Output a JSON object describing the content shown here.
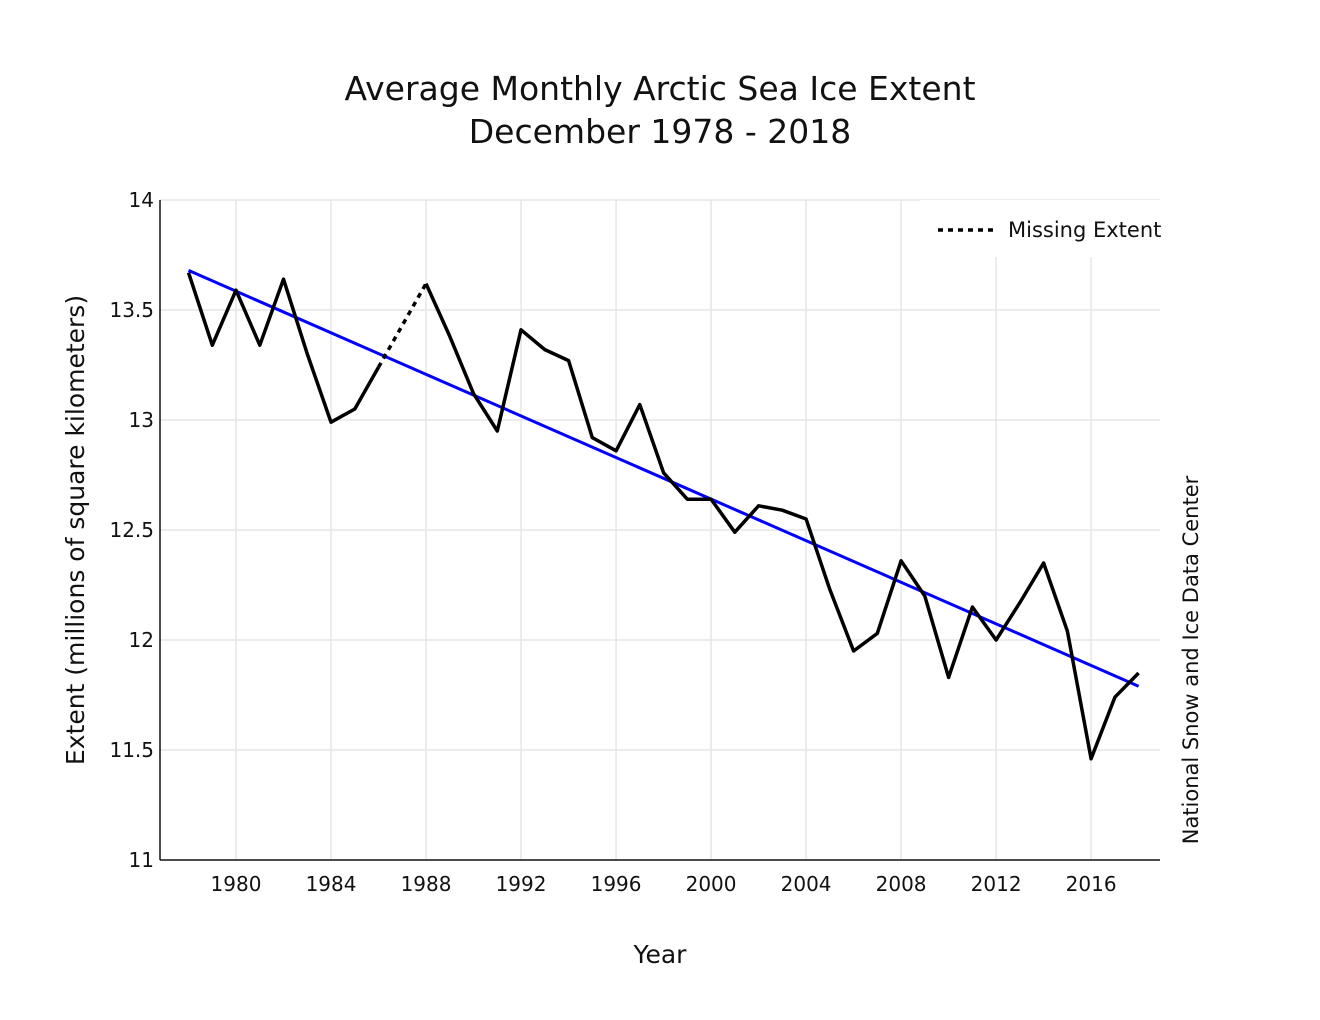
{
  "chart_data": {
    "type": "line",
    "title": "Average Monthly Arctic Sea Ice Extent",
    "subtitle": "December 1978 - 2018",
    "xlabel": "Year",
    "ylabel": "Extent (millions of square kilometers)",
    "credit": "National Snow and Ice Data Center",
    "xlim": [
      1976.8,
      2018.9
    ],
    "ylim": [
      11,
      14
    ],
    "x_ticks": [
      1980,
      1984,
      1988,
      1992,
      1996,
      2000,
      2004,
      2008,
      2012,
      2016
    ],
    "y_ticks": [
      11,
      11.5,
      12,
      12.5,
      13,
      13.5,
      14
    ],
    "y_tick_labels": [
      "11",
      "11.5",
      "12",
      "12.5",
      "13",
      "13.5",
      "14"
    ],
    "grid": true,
    "legend_position": "top-right",
    "legend": [
      {
        "label": "Missing Extent",
        "style": "dotted",
        "color": "#000000"
      }
    ],
    "series": [
      {
        "style": "solid",
        "color": "#000000",
        "x": [
          1978,
          1979,
          1980,
          1981,
          1982,
          1983,
          1984,
          1985,
          1986
        ],
        "y": [
          13.67,
          13.34,
          13.59,
          13.34,
          13.64,
          13.3,
          12.99,
          13.05,
          13.24
        ]
      },
      {
        "style": "dotted",
        "color": "#000000",
        "x": [
          1986,
          1988
        ],
        "y": [
          13.24,
          13.62
        ]
      },
      {
        "style": "solid",
        "color": "#000000",
        "x": [
          1988,
          1989,
          1990,
          1991,
          1992,
          1993,
          1994,
          1995,
          1996,
          1997,
          1998,
          1999,
          2000,
          2001,
          2002,
          2003,
          2004,
          2005,
          2006,
          2007,
          2008,
          2009,
          2010,
          2011,
          2012,
          2013,
          2014,
          2015,
          2016,
          2017,
          2018
        ],
        "y": [
          13.62,
          13.38,
          13.12,
          12.95,
          13.41,
          13.32,
          13.27,
          12.92,
          12.86,
          13.07,
          12.76,
          12.64,
          12.64,
          12.49,
          12.61,
          12.59,
          12.55,
          12.23,
          11.95,
          12.03,
          12.36,
          12.2,
          11.83,
          12.15,
          12.0,
          12.17,
          12.35,
          12.04,
          11.46,
          11.74,
          11.85
        ]
      },
      {
        "style": "trend",
        "color": "#0000ff",
        "x": [
          1978,
          2018
        ],
        "y": [
          13.68,
          11.79
        ]
      }
    ]
  }
}
